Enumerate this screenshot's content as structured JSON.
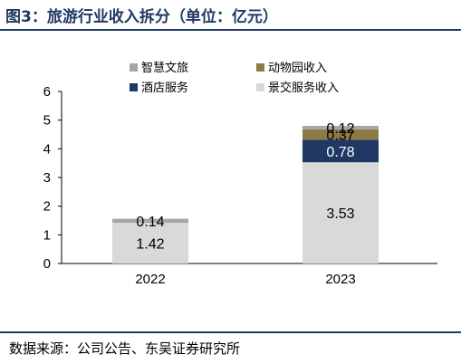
{
  "figure": {
    "title": "图3：旅游行业收入拆分（单位：亿元）",
    "source": "数据来源：公司公告、东吴证券研究所"
  },
  "chart_data": {
    "type": "bar",
    "stacked": true,
    "title": "",
    "xlabel": "",
    "ylabel": "",
    "categories": [
      "2022",
      "2023"
    ],
    "ylim": [
      0,
      6
    ],
    "yticks": [
      "0",
      "1",
      "2",
      "3",
      "4",
      "5",
      "6"
    ],
    "grid": false,
    "legend_position": "top",
    "series": [
      {
        "name": "景交服务收入",
        "values": [
          1.42,
          3.53
        ],
        "labels": [
          "1.42",
          "3.53"
        ],
        "color": "#d9d9d9"
      },
      {
        "name": "酒店服务",
        "values": [
          0,
          0.78
        ],
        "labels": [
          "",
          "0.78"
        ],
        "color": "#1f3864"
      },
      {
        "name": "动物园收入",
        "values": [
          0,
          0.37
        ],
        "labels": [
          "",
          "0.37"
        ],
        "color": "#8c7a47"
      },
      {
        "name": "智慧文旅",
        "values": [
          0.14,
          0.12
        ],
        "labels": [
          "0.14",
          "0.12"
        ],
        "color": "#a6a6a6"
      }
    ],
    "legend_order": [
      "智慧文旅",
      "动物园收入",
      "酒店服务",
      "景交服务收入"
    ]
  }
}
